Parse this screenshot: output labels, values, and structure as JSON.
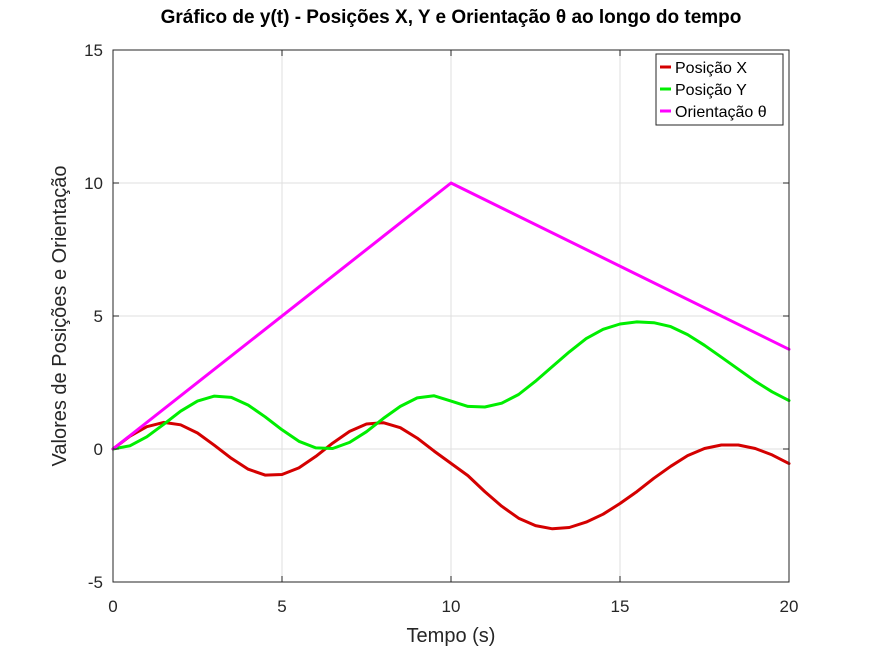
{
  "chart_data": {
    "type": "line",
    "title": "Gráfico de y(t) - Posições X, Y e Orientação θ ao longo do tempo",
    "xlabel": "Tempo (s)",
    "ylabel": "Valores de Posições e Orientação",
    "xlim": [
      0,
      20
    ],
    "ylim": [
      -5,
      15
    ],
    "xticks": [
      0,
      5,
      10,
      15,
      20
    ],
    "yticks": [
      -5,
      0,
      5,
      10,
      15
    ],
    "grid": true,
    "legend_position": "top-right",
    "series": [
      {
        "name": "Posição X",
        "color": "#d40000",
        "x": [
          0,
          0.5,
          1,
          1.5,
          2,
          2.5,
          3,
          3.5,
          4,
          4.5,
          5,
          5.5,
          6,
          6.5,
          7,
          7.5,
          8,
          8.5,
          9,
          9.5,
          10,
          10.5,
          11,
          11.5,
          12,
          12.5,
          13,
          13.5,
          14,
          14.5,
          15,
          15.5,
          16,
          16.5,
          17,
          17.5,
          18,
          18.5,
          19,
          19.5,
          20
        ],
        "values": [
          0,
          0.48,
          0.84,
          1.0,
          0.91,
          0.6,
          0.14,
          -0.35,
          -0.76,
          -0.98,
          -0.96,
          -0.71,
          -0.28,
          0.22,
          0.66,
          0.94,
          0.99,
          0.8,
          0.41,
          -0.08,
          -0.54,
          -1.0,
          -1.6,
          -2.15,
          -2.6,
          -2.88,
          -3.0,
          -2.95,
          -2.75,
          -2.45,
          -2.05,
          -1.6,
          -1.1,
          -0.65,
          -0.25,
          0.02,
          0.15,
          0.15,
          0.02,
          -0.22,
          -0.55
        ]
      },
      {
        "name": "Posição Y",
        "color": "#00ee00",
        "x": [
          0,
          0.5,
          1,
          1.5,
          2,
          2.5,
          3,
          3.5,
          4,
          4.5,
          5,
          5.5,
          6,
          6.5,
          7,
          7.5,
          8,
          8.5,
          9,
          9.5,
          10,
          10.5,
          11,
          11.5,
          12,
          12.5,
          13,
          13.5,
          14,
          14.5,
          15,
          15.5,
          16,
          16.5,
          17,
          17.5,
          18,
          18.5,
          19,
          19.5,
          20
        ],
        "values": [
          0,
          0.12,
          0.46,
          0.93,
          1.42,
          1.8,
          1.99,
          1.94,
          1.65,
          1.21,
          0.72,
          0.29,
          0.04,
          0.02,
          0.25,
          0.65,
          1.15,
          1.6,
          1.92,
          2.0,
          1.8,
          1.6,
          1.58,
          1.72,
          2.05,
          2.55,
          3.1,
          3.65,
          4.15,
          4.5,
          4.7,
          4.78,
          4.75,
          4.6,
          4.3,
          3.9,
          3.45,
          3.0,
          2.55,
          2.15,
          1.82
        ]
      },
      {
        "name": "Orientação θ",
        "color": "#ff00ff",
        "x": [
          0,
          10,
          20
        ],
        "values": [
          0,
          10,
          3.75
        ]
      }
    ]
  }
}
